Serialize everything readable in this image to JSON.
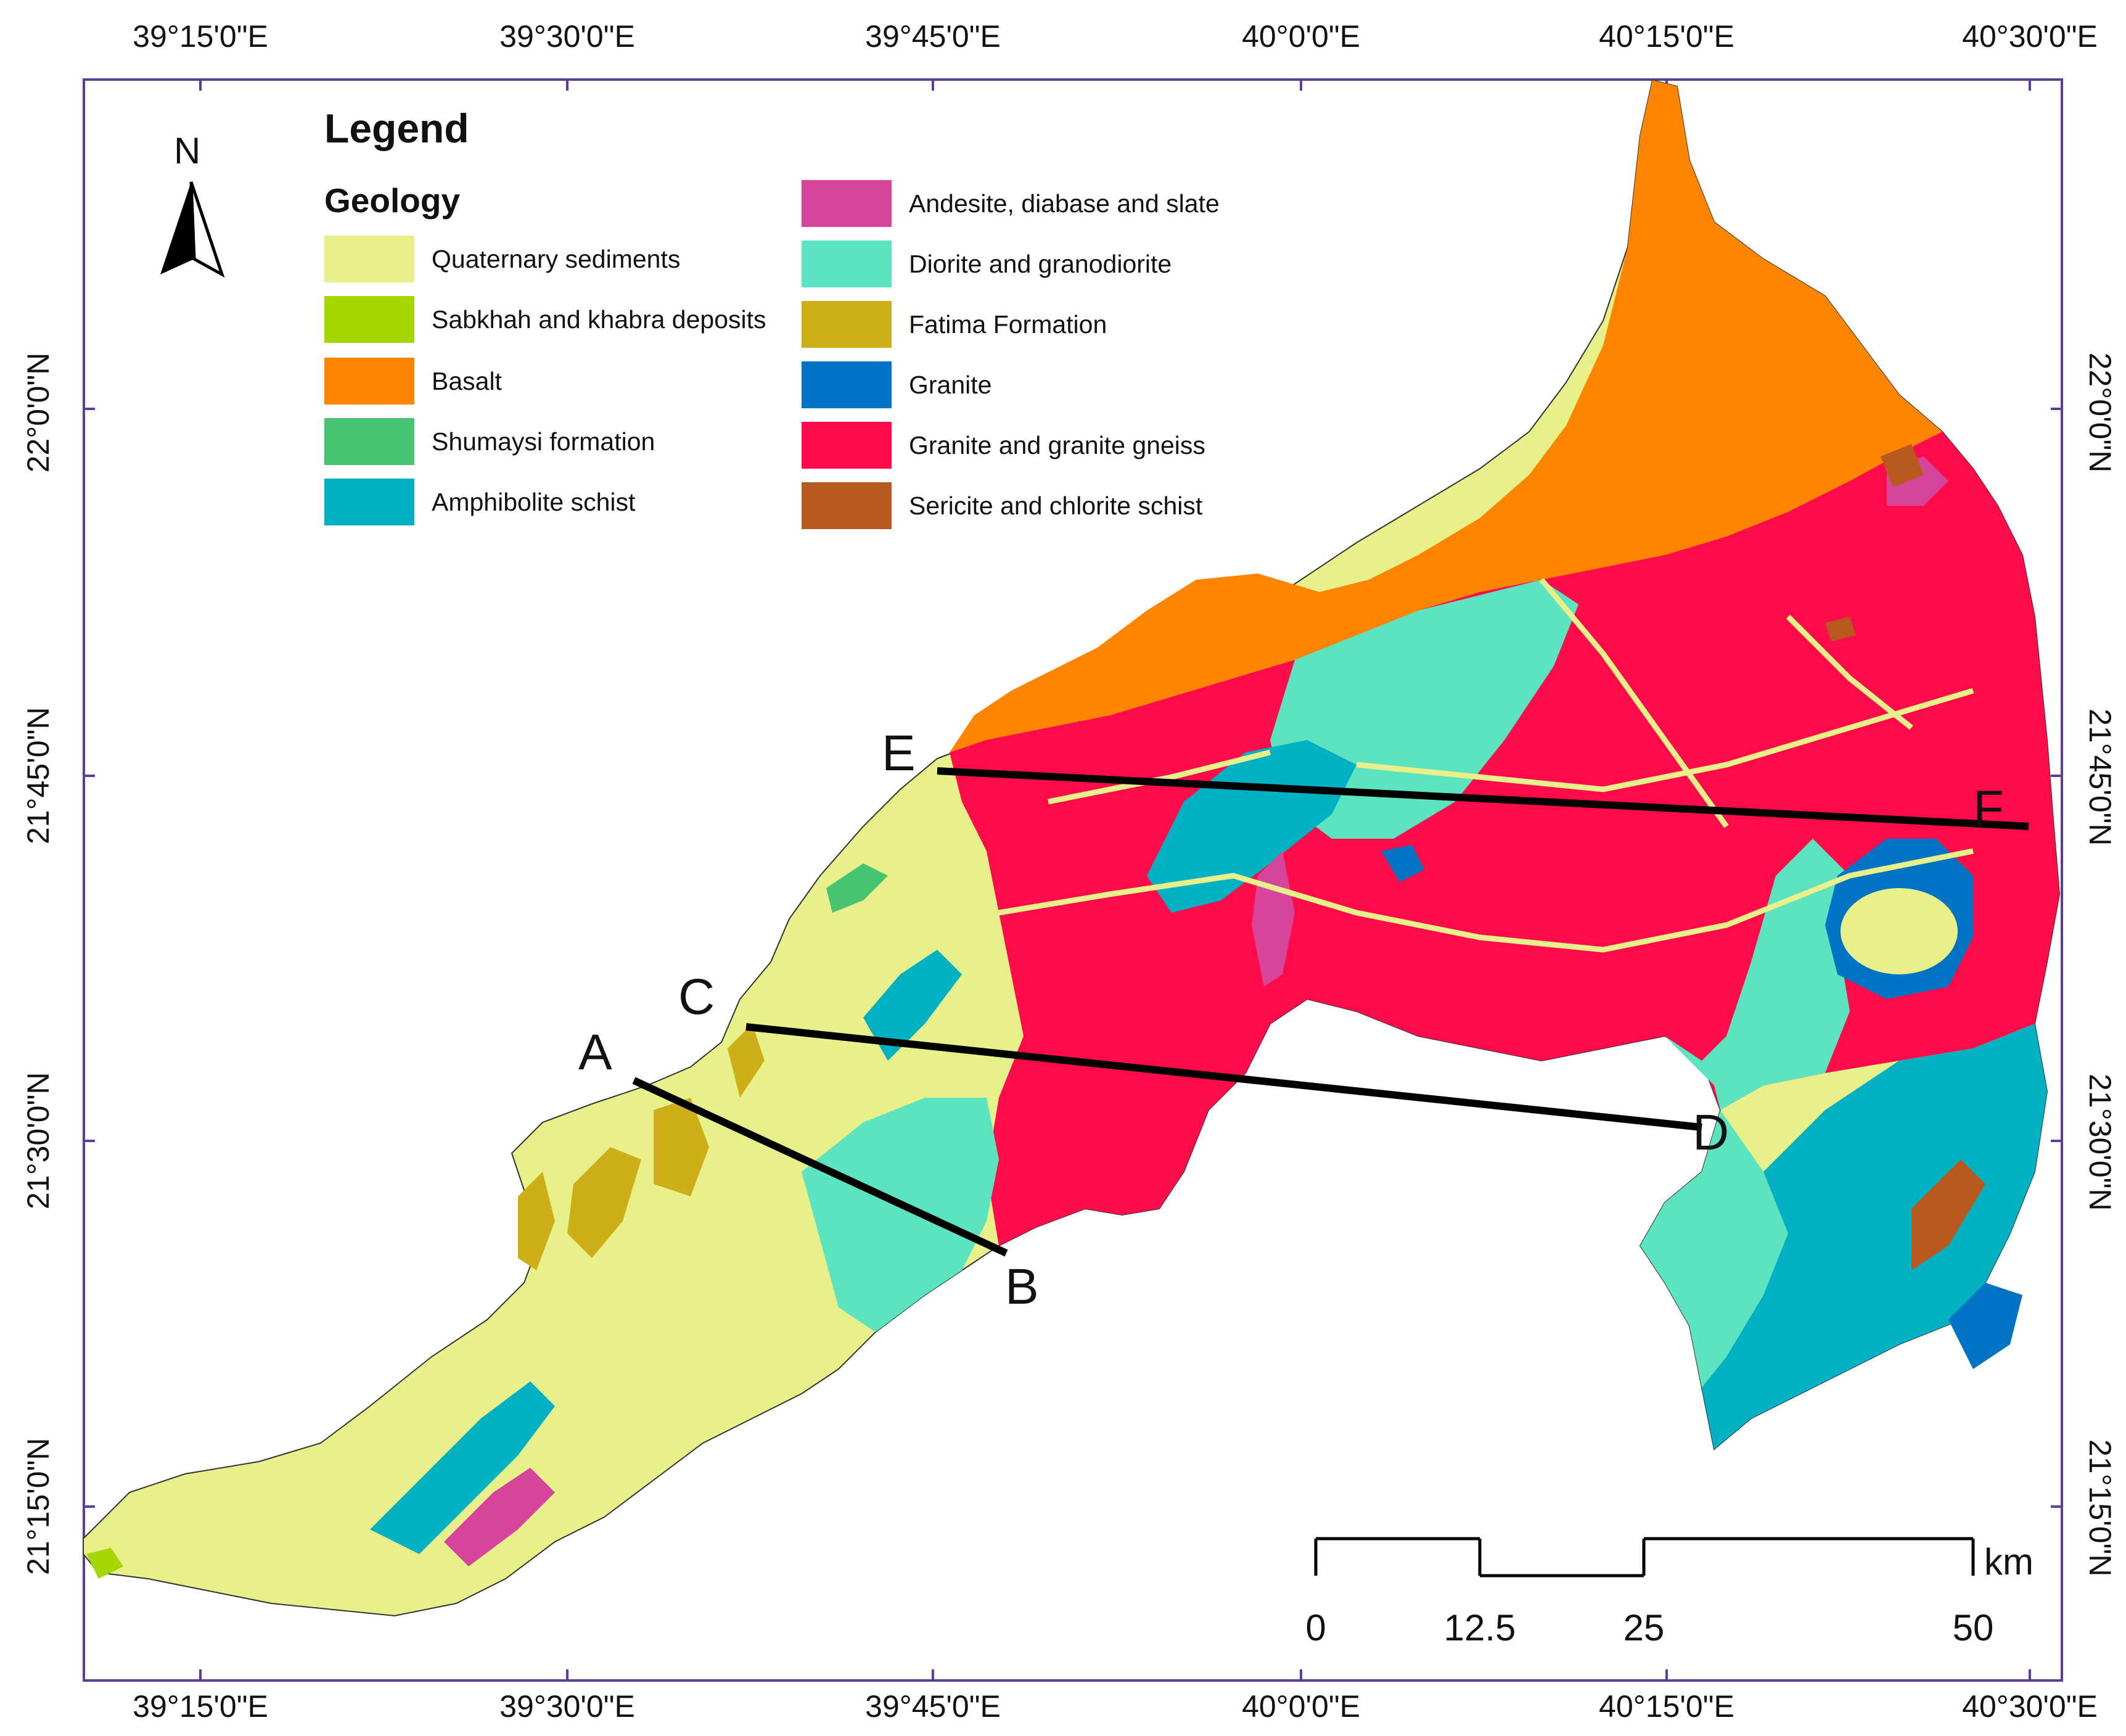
{
  "graticule": {
    "lon_labels": [
      "39°15'0\"E",
      "39°30'0\"E",
      "39°45'0\"E",
      "40°0'0\"E",
      "40°15'0\"E",
      "40°30'0\"E"
    ],
    "lat_labels": [
      "22°0'0\"N",
      "21°45'0\"N",
      "21°30'0\"N",
      "21°15'0\"N"
    ]
  },
  "legend": {
    "title": "Legend",
    "subtitle": "Geology",
    "items": [
      {
        "label": "Quaternary sediments",
        "color": "#e8f08a"
      },
      {
        "label": "Sabkhah and khabra deposits",
        "color": "#a6d600"
      },
      {
        "label": "Basalt",
        "color": "#ff8400"
      },
      {
        "label": "Shumaysi formation",
        "color": "#47c46f"
      },
      {
        "label": "Amphibolite schist",
        "color": "#00b1c4"
      },
      {
        "label": "Andesite, diabase and slate",
        "color": "#d6459b"
      },
      {
        "label": "Diorite and granodiorite",
        "color": "#5ce3c0"
      },
      {
        "label": "Fatima Formation",
        "color": "#ceaf1a"
      },
      {
        "label": "Granite",
        "color": "#0073c4"
      },
      {
        "label": "Granite and granite gneiss",
        "color": "#ff0b4a"
      },
      {
        "label": "Sericite and chlorite schist",
        "color": "#b85a1e"
      }
    ]
  },
  "north_arrow": {
    "label": "N"
  },
  "profiles": {
    "A": "A",
    "B": "B",
    "C": "C",
    "D": "D",
    "E": "E",
    "F": "F"
  },
  "scale_bar": {
    "unit": "km",
    "labels": [
      "0",
      "12.5",
      "25",
      "50"
    ]
  },
  "colors": {
    "frame": "#5b3d9a",
    "profile_line": "#000000"
  }
}
